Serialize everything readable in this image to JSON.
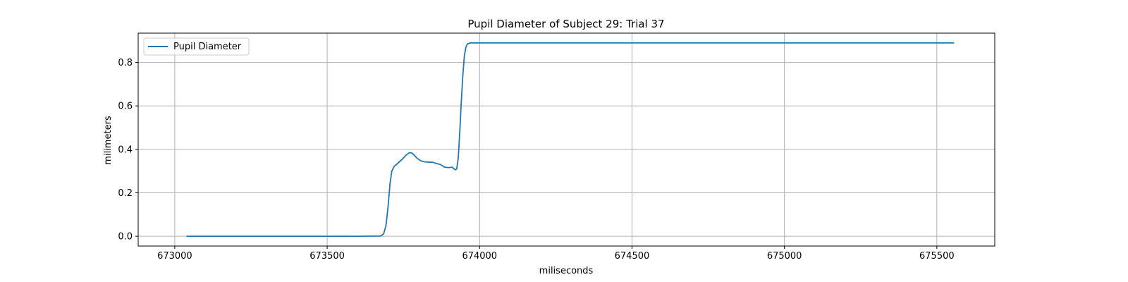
{
  "chart_data": {
    "type": "line",
    "title": "Pupil Diameter of Subject 29: Trial 37",
    "xlabel": "miliseconds",
    "ylabel": "milimeters",
    "xlim": [
      672880,
      675690
    ],
    "ylim": [
      -0.045,
      0.935
    ],
    "xticks": [
      673000,
      673500,
      674000,
      674500,
      675000,
      675500
    ],
    "xtick_labels": [
      "673000",
      "673500",
      "674000",
      "674500",
      "675000",
      "675500"
    ],
    "yticks": [
      0.0,
      0.2,
      0.4,
      0.6,
      0.8
    ],
    "ytick_labels": [
      "0.0",
      "0.2",
      "0.4",
      "0.6",
      "0.8"
    ],
    "grid": true,
    "legend_position": "upper-left",
    "series": [
      {
        "name": "Pupil Diameter",
        "color": "#1f77b4",
        "x": [
          673040,
          673300,
          673600,
          673675,
          673685,
          673693,
          673700,
          673706,
          673712,
          673720,
          673730,
          673745,
          673760,
          673770,
          673777,
          673785,
          673795,
          673808,
          673822,
          673835,
          673845,
          673858,
          673872,
          673885,
          673898,
          673910,
          673920,
          673925,
          673930,
          673935,
          673940,
          673945,
          673950,
          673955,
          673960,
          673970,
          673985,
          674000,
          674500,
          675000,
          675555
        ],
        "y": [
          0.0,
          0.0,
          0.0,
          0.001,
          0.01,
          0.05,
          0.14,
          0.24,
          0.3,
          0.322,
          0.334,
          0.353,
          0.375,
          0.385,
          0.384,
          0.374,
          0.359,
          0.347,
          0.342,
          0.341,
          0.341,
          0.335,
          0.33,
          0.318,
          0.316,
          0.318,
          0.306,
          0.31,
          0.36,
          0.48,
          0.62,
          0.74,
          0.83,
          0.87,
          0.885,
          0.89,
          0.89,
          0.89,
          0.89,
          0.89,
          0.89
        ]
      }
    ]
  }
}
